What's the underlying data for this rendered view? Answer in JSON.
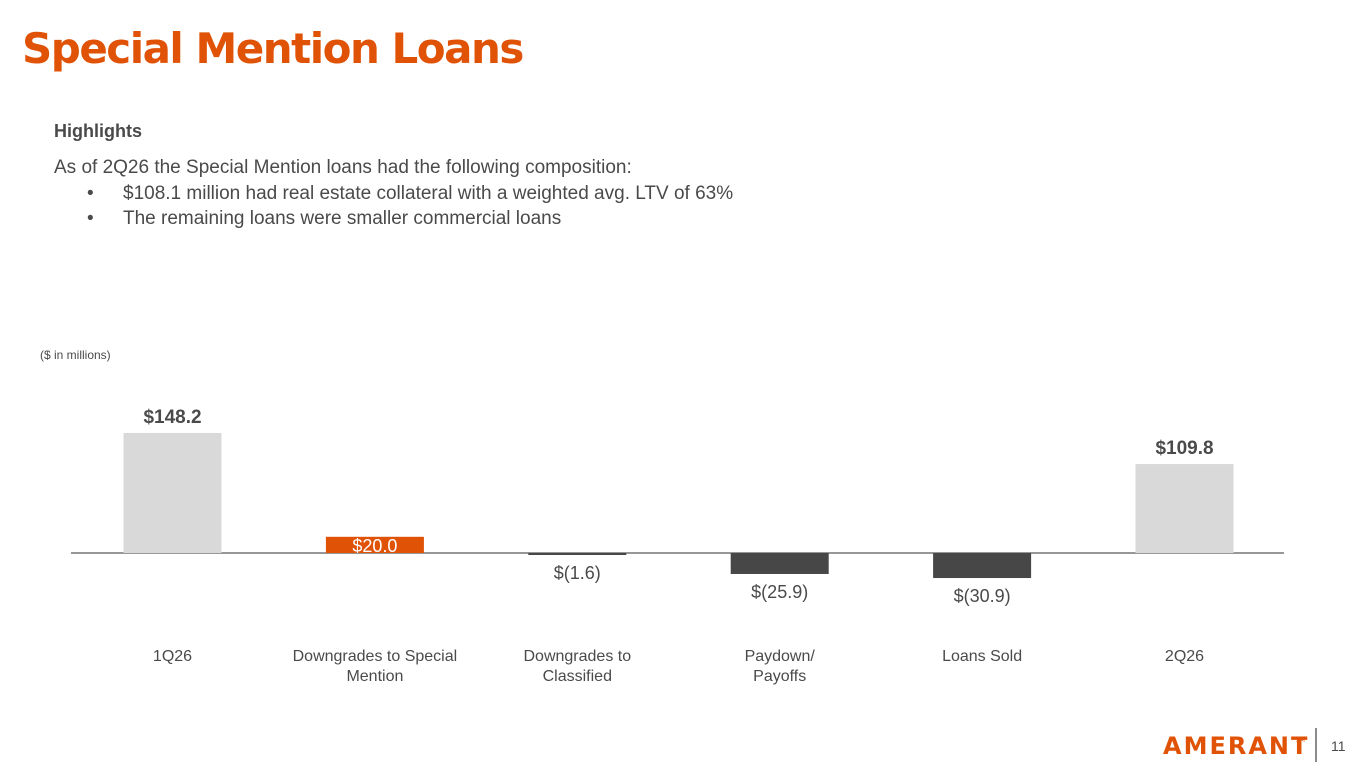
{
  "slide": {
    "title": "Special Mention Loans",
    "highlights_heading": "Highlights",
    "intro": "As of 2Q26 the Special Mention loans had the following composition:",
    "bullets": [
      "$108.1 million had real estate collateral with a weighted avg. LTV of 63%",
      "The remaining loans were smaller commercial loans"
    ],
    "units_note": "($ in millions)",
    "brand": "AMERANT",
    "page_number": "11"
  },
  "colors": {
    "accent": "#e05206",
    "text": "#4a4a4a",
    "total_bar": "#d9d9d9",
    "increase_bar": "#e05206",
    "decrease_bar": "#474747",
    "axis": "#595959"
  },
  "chart_data": {
    "type": "bar",
    "subtype": "waterfall",
    "categories": [
      "1Q26",
      "Downgrades to Special Mention",
      "Downgrades to Classified",
      "Paydown/ Payoffs",
      "Loans Sold",
      "2Q26"
    ],
    "category_lines": [
      [
        "1Q26"
      ],
      [
        "Downgrades to Special",
        "Mention"
      ],
      [
        "Downgrades to",
        "Classified"
      ],
      [
        "Paydown/",
        "Payoffs"
      ],
      [
        "Loans Sold"
      ],
      [
        "2Q26"
      ]
    ],
    "values": [
      148.2,
      20.0,
      -1.6,
      -25.9,
      -30.9,
      109.8
    ],
    "data_labels": [
      "$148.2",
      "$20.0",
      "$(1.6)",
      "$(25.9)",
      "$(30.9)",
      "$109.8"
    ],
    "kinds": [
      "total",
      "increase",
      "decrease",
      "decrease",
      "decrease",
      "total"
    ],
    "grid": false,
    "legend": "none"
  }
}
